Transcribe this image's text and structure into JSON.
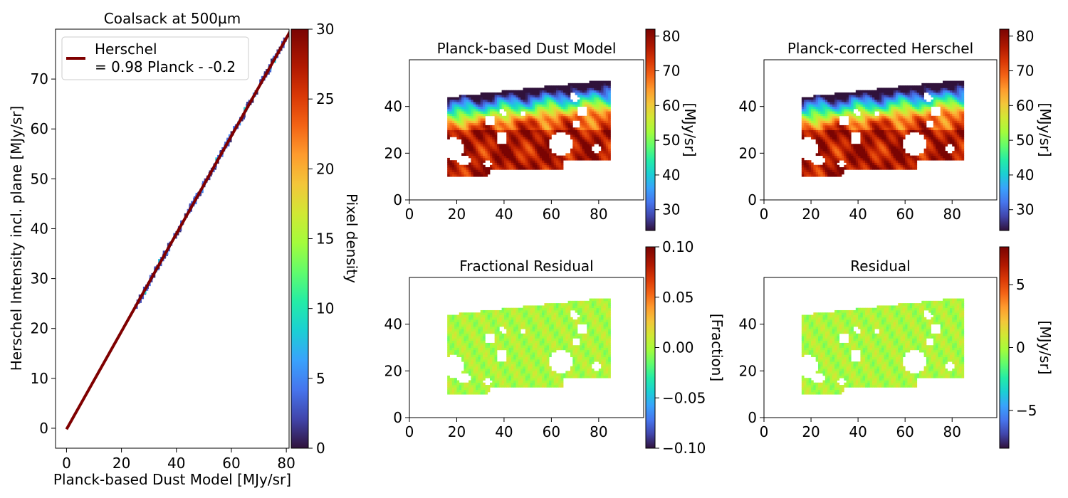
{
  "chart_data": [
    {
      "type": "heatmap",
      "kind": "2D histogram scatter with fit line",
      "title": "Coalsack at 500µm",
      "xlabel": "Planck-based Dust Model [MJy/sr]",
      "ylabel": "Herschel Intensity incl. plane [MJy/sr]",
      "xlim": [
        -4,
        81
      ],
      "ylim": [
        -4,
        80
      ],
      "xticks": [
        "0",
        "20",
        "40",
        "60",
        "80"
      ],
      "yticks": [
        "0",
        "10",
        "20",
        "30",
        "40",
        "50",
        "60",
        "70"
      ],
      "fit": {
        "slope": 0.98,
        "intercept": -0.2,
        "x_range": [
          0,
          81
        ],
        "color": "#7f0000"
      },
      "legend": {
        "position": "top-left",
        "line1": "Herschel",
        "line2": "= 0.98 Planck - -0.2"
      },
      "density_band": {
        "x_range": [
          26,
          80
        ],
        "colormap": "turbo"
      },
      "colorbar": {
        "label": "Pixel density",
        "range": [
          0,
          30
        ],
        "ticks": [
          "0",
          "5",
          "10",
          "15",
          "20",
          "25",
          "30"
        ]
      }
    },
    {
      "type": "heatmap",
      "title": "Planck-based Dust Model",
      "xticks": [
        "0",
        "20",
        "40",
        "60",
        "80"
      ],
      "yticks": [
        "0",
        "20",
        "40"
      ],
      "xlim": [
        0,
        99
      ],
      "ylim": [
        0,
        60
      ],
      "map": "dust",
      "colorbar": {
        "label": "[MJy/sr]",
        "range": [
          24,
          82
        ],
        "ticks": [
          "30",
          "40",
          "50",
          "60",
          "70",
          "80"
        ]
      }
    },
    {
      "type": "heatmap",
      "title": "Planck-corrected Herschel",
      "xticks": [
        "0",
        "20",
        "40",
        "60",
        "80"
      ],
      "yticks": [
        "0",
        "20",
        "40"
      ],
      "xlim": [
        0,
        99
      ],
      "ylim": [
        0,
        60
      ],
      "map": "dust",
      "colorbar": {
        "label": "[MJy/sr]",
        "range": [
          24,
          82
        ],
        "ticks": [
          "30",
          "40",
          "50",
          "60",
          "70",
          "80"
        ]
      }
    },
    {
      "type": "heatmap",
      "title": "Fractional Residual",
      "xticks": [
        "0",
        "20",
        "40",
        "60",
        "80"
      ],
      "yticks": [
        "0",
        "20",
        "40"
      ],
      "xlim": [
        0,
        99
      ],
      "ylim": [
        0,
        60
      ],
      "map": "residual",
      "colorbar": {
        "label": "[Fraction]",
        "range": [
          -0.1,
          0.1
        ],
        "ticks": [
          "0.10",
          "0.05",
          "0.00",
          "−0.05",
          "−0.10"
        ]
      }
    },
    {
      "type": "heatmap",
      "title": "Residual",
      "xticks": [
        "0",
        "20",
        "40",
        "60",
        "80"
      ],
      "yticks": [
        "0",
        "20",
        "40"
      ],
      "xlim": [
        0,
        99
      ],
      "ylim": [
        0,
        60
      ],
      "map": "residual",
      "colorbar": {
        "label": "[MJy/sr]",
        "range": [
          -8,
          8
        ],
        "ticks": [
          "5",
          "0",
          "−5"
        ]
      }
    }
  ],
  "colors": {
    "fit_line": "#7f0000",
    "axes": "#000000",
    "background": "#ffffff"
  }
}
